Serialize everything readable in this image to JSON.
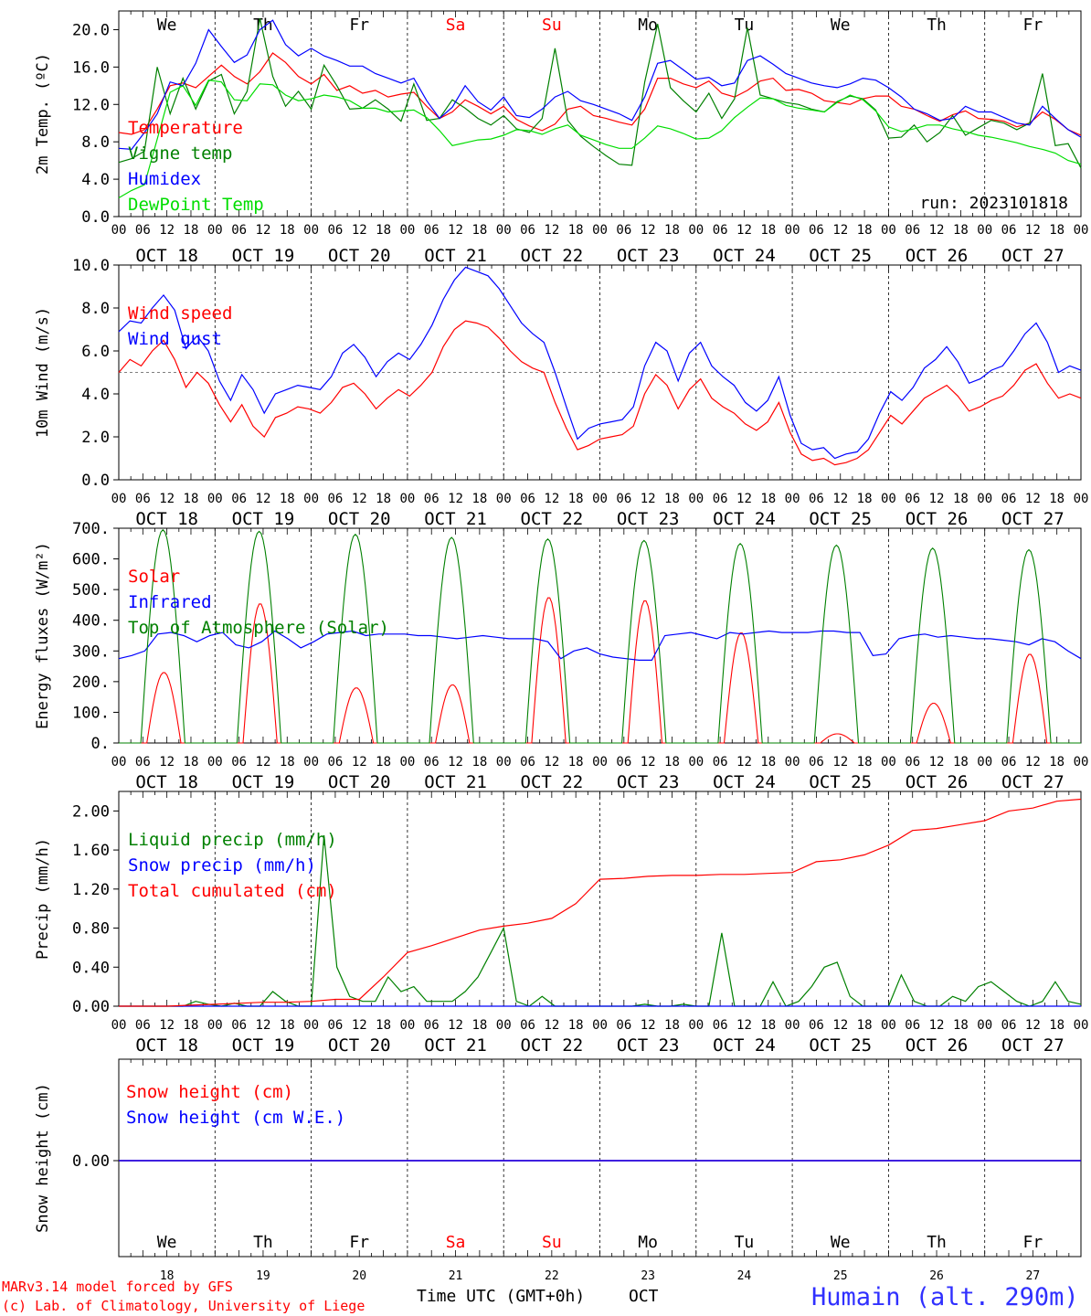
{
  "days": [
    "We",
    "Th",
    "Fr",
    "Sa",
    "Su",
    "Mo",
    "Tu",
    "We",
    "Th",
    "Fr"
  ],
  "day_colors": [
    "#000000",
    "#000000",
    "#000000",
    "#ff0000",
    "#ff0000",
    "#000000",
    "#000000",
    "#000000",
    "#000000",
    "#000000"
  ],
  "dates": [
    "OCT 18",
    "OCT 19",
    "OCT 20",
    "OCT 21",
    "OCT 22",
    "OCT 23",
    "OCT 24",
    "OCT 25",
    "OCT 26",
    "OCT 27"
  ],
  "hour_ticks": [
    "00",
    "06",
    "12",
    "18"
  ],
  "bottom_day_numbers": [
    "18",
    "19",
    "20",
    "21",
    "22",
    "23",
    "24",
    "25",
    "26",
    "27"
  ],
  "footer": {
    "model": "MARv3.14 model forced by GFS",
    "credit": "(c) Lab. of Climatology, University of Liege",
    "xlabel": "Time UTC (GMT+0h)",
    "month": "OCT",
    "station": "Humain (alt. 290m)"
  },
  "colors": {
    "red": "#ff0000",
    "blue": "#0000ff",
    "green": "#008000",
    "lightgreen": "#00dd00",
    "purple": "#800080"
  },
  "chart_data": [
    {
      "type": "line",
      "ylabel": "2m Temp. (ºC)",
      "ylim": [
        0,
        22
      ],
      "yticks": [
        "0.0",
        "4.0",
        "8.0",
        "12.0",
        "16.0",
        "20.0"
      ],
      "annotation": "run: 2023101818",
      "series": [
        {
          "name": "Temperature",
          "color": "#ff0000",
          "values": [
            9,
            8.8,
            9.3,
            11.5,
            14,
            14.3,
            13.8,
            15,
            16.2,
            15,
            14.2,
            15.5,
            17.5,
            16.5,
            15,
            14.2,
            15.2,
            13.5,
            14,
            13.2,
            13.5,
            12.8,
            13.1,
            13.3,
            11.8,
            10.5,
            11.2,
            12.5,
            11.8,
            11,
            11.8,
            10.4,
            9.7,
            9.2,
            9.9,
            11.5,
            11.8,
            10.8,
            10.5,
            10.1,
            9.8,
            11.5,
            14.8,
            14.8,
            14.2,
            13.8,
            14.5,
            13.2,
            12.8,
            13.5,
            14.5,
            14.8,
            13.5,
            13.6,
            13.2,
            12.4,
            12.2,
            12,
            12.6,
            12.9,
            12.9,
            11.8,
            11.5,
            10.8,
            10.2,
            10.9,
            11.3,
            10.5,
            10.4,
            10.2,
            9.6,
            10,
            11.2,
            10.4,
            9.3,
            8.7
          ]
        },
        {
          "name": "Vigne temp",
          "color": "#008000",
          "values": [
            5.8,
            6.2,
            7,
            16,
            11,
            14.8,
            11.5,
            14.5,
            15.2,
            11,
            13.4,
            21.2,
            15,
            11.8,
            13.4,
            11.5,
            16.2,
            14,
            11.5,
            11.6,
            12.5,
            11.5,
            10.2,
            14.2,
            10.3,
            10.5,
            12.5,
            11.6,
            10.5,
            9.8,
            10.8,
            9.4,
            9,
            10.5,
            18,
            10.3,
            8.6,
            7.5,
            6.5,
            5.6,
            5.5,
            14.4,
            20.6,
            13.8,
            12.4,
            11.2,
            13.2,
            10.5,
            12.6,
            20.2,
            13,
            12.6,
            12.2,
            12,
            11.5,
            11.2,
            12.3,
            12.9,
            12.6,
            11.4,
            8.4,
            8.5,
            9.8,
            8,
            9,
            10.8,
            8.7,
            9.5,
            10.3,
            10,
            9.3,
            10,
            15.3,
            7.6,
            7.8,
            5.2
          ]
        },
        {
          "name": "Humidex",
          "color": "#0000ff",
          "values": [
            7.3,
            7.2,
            9,
            11,
            14.4,
            14,
            16.4,
            20,
            18.2,
            16.5,
            17.3,
            20,
            21,
            18.4,
            17.2,
            18,
            17.2,
            16.7,
            16.1,
            16.1,
            15.3,
            14.8,
            14.3,
            14.8,
            12.4,
            10.5,
            11.7,
            14,
            12.3,
            11.4,
            12.8,
            10.8,
            10.6,
            11.5,
            12.8,
            13.4,
            12.4,
            12,
            11.5,
            11,
            10.3,
            12.8,
            16.4,
            16.7,
            15.7,
            14.7,
            14.9,
            14,
            14.3,
            16.7,
            17.2,
            16.3,
            15.3,
            14.8,
            14.3,
            14,
            13.8,
            14.2,
            14.8,
            14.6,
            13.8,
            12.8,
            11.5,
            11,
            10.3,
            10.5,
            11.8,
            11.2,
            11.2,
            10.6,
            10,
            9.8,
            11.8,
            10.5,
            9.3,
            8.5
          ]
        },
        {
          "name": "DewPoint Temp",
          "color": "#00dd00",
          "values": [
            2,
            2.8,
            3.4,
            8.3,
            13.3,
            14,
            11.9,
            14.6,
            14.4,
            12.5,
            12.4,
            14.2,
            14.1,
            13,
            12.4,
            12.6,
            13,
            12.8,
            12.4,
            11.6,
            11.6,
            11.2,
            11.3,
            11.4,
            10.6,
            9.2,
            7.6,
            7.9,
            8.2,
            8.3,
            8.7,
            9.3,
            9.2,
            8.8,
            9.4,
            9.8,
            8.7,
            8.2,
            7.7,
            7.3,
            7.3,
            8.4,
            9.7,
            9.4,
            8.9,
            8.3,
            8.4,
            9.2,
            10.6,
            11.7,
            12.7,
            12.6,
            11.9,
            11.6,
            11.4,
            11.2,
            12.2,
            13,
            12.5,
            11.3,
            9.6,
            9.1,
            9.4,
            9.8,
            9.8,
            9.4,
            9.1,
            8.7,
            8.5,
            8.2,
            7.9,
            7.5,
            7.2,
            6.8,
            6,
            5.6
          ]
        }
      ]
    },
    {
      "type": "line",
      "ylabel": "10m Wind (m/s)",
      "ylim": [
        0,
        10
      ],
      "yticks": [
        "0.0",
        "2.0",
        "4.0",
        "6.0",
        "8.0",
        "10.0"
      ],
      "reference_line": 5,
      "series": [
        {
          "name": "Wind speed",
          "color": "#ff0000",
          "values": [
            5,
            5.6,
            5.3,
            6,
            6.5,
            5.6,
            4.3,
            5,
            4.5,
            3.5,
            2.7,
            3.5,
            2.5,
            2,
            2.9,
            3.1,
            3.4,
            3.3,
            3.1,
            3.6,
            4.3,
            4.5,
            4,
            3.3,
            3.8,
            4.2,
            3.9,
            4.4,
            5,
            6.2,
            7,
            7.4,
            7.3,
            7.1,
            6.6,
            6,
            5.5,
            5.2,
            5,
            3.6,
            2.4,
            1.4,
            1.6,
            1.9,
            2,
            2.1,
            2.5,
            4,
            4.9,
            4.4,
            3.3,
            4.2,
            4.7,
            3.8,
            3.4,
            3.1,
            2.6,
            2.3,
            2.7,
            3.6,
            2.2,
            1.2,
            0.9,
            1,
            0.7,
            0.8,
            1,
            1.4,
            2.2,
            3,
            2.6,
            3.2,
            3.8,
            4.1,
            4.4,
            3.9,
            3.2,
            3.4,
            3.7,
            3.9,
            4.4,
            5.1,
            5.4,
            4.5,
            3.8,
            4,
            3.8
          ]
        },
        {
          "name": "Wind gust",
          "color": "#0000ff",
          "values": [
            6.9,
            7.4,
            7.3,
            8,
            8.6,
            7.9,
            6.1,
            6.7,
            6,
            4.6,
            3.7,
            4.9,
            4.2,
            3.1,
            4,
            4.2,
            4.4,
            4.3,
            4.2,
            4.8,
            5.9,
            6.3,
            5.7,
            4.8,
            5.5,
            5.9,
            5.6,
            6.3,
            7.2,
            8.4,
            9.3,
            9.9,
            9.7,
            9.5,
            8.9,
            8.1,
            7.3,
            6.8,
            6.4,
            5,
            3.4,
            1.9,
            2.4,
            2.6,
            2.7,
            2.8,
            3.4,
            5.3,
            6.4,
            6,
            4.6,
            5.9,
            6.4,
            5.3,
            4.8,
            4.4,
            3.6,
            3.2,
            3.7,
            4.8,
            3,
            1.7,
            1.4,
            1.5,
            1,
            1.2,
            1.3,
            1.9,
            3.1,
            4.1,
            3.7,
            4.3,
            5.2,
            5.6,
            6.2,
            5.5,
            4.5,
            4.7,
            5.1,
            5.3,
            6,
            6.8,
            7.3,
            6.4,
            5,
            5.3,
            5.1
          ]
        }
      ]
    },
    {
      "type": "line",
      "ylabel": "Energy fluxes (W/m²)",
      "ylim": [
        0,
        700
      ],
      "yticks": [
        "0.",
        "100.",
        "200.",
        "300.",
        "400.",
        "500.",
        "600.",
        "700."
      ],
      "series": [
        {
          "name": "Solar",
          "color": "#ff0000",
          "days_peak": [
            230,
            455,
            180,
            190,
            475,
            465,
            360,
            30,
            130,
            290
          ]
        },
        {
          "name": "Infrared",
          "color": "#0000ff",
          "values": [
            275,
            285,
            300,
            355,
            360,
            350,
            330,
            350,
            360,
            320,
            310,
            330,
            365,
            340,
            310,
            330,
            355,
            360,
            365,
            350,
            355,
            355,
            355,
            350,
            350,
            345,
            340,
            345,
            350,
            345,
            340,
            340,
            340,
            330,
            275,
            300,
            310,
            290,
            280,
            275,
            270,
            270,
            350,
            355,
            360,
            350,
            340,
            360,
            355,
            360,
            365,
            360,
            360,
            360,
            365,
            365,
            360,
            360,
            285,
            290,
            340,
            350,
            355,
            345,
            350,
            345,
            340,
            340,
            335,
            330,
            320,
            340,
            330,
            300,
            275
          ]
        },
        {
          "name": "Top of Atmosphere (Solar)",
          "color": "#008000",
          "days_peak": [
            695,
            690,
            680,
            670,
            665,
            660,
            650,
            645,
            635,
            630
          ]
        }
      ]
    },
    {
      "type": "line",
      "ylabel": "Precip (mm/h)",
      "ylim": [
        0,
        2.2
      ],
      "yticks": [
        "0.00",
        "0.40",
        "0.80",
        "1.20",
        "1.60",
        "2.00"
      ],
      "series": [
        {
          "name": "Liquid precip (mm/h)",
          "color": "#008000",
          "values": [
            0,
            0,
            0,
            0,
            0,
            0,
            0.05,
            0.02,
            0,
            0.03,
            0,
            0,
            0.15,
            0.05,
            0,
            0,
            1.75,
            0.4,
            0.1,
            0.05,
            0.05,
            0.3,
            0.15,
            0.2,
            0.05,
            0.05,
            0.05,
            0.15,
            0.3,
            0.55,
            0.8,
            0.05,
            0,
            0.1,
            0,
            0,
            0,
            0,
            0,
            0,
            0,
            0.02,
            0,
            0,
            0.02,
            0,
            0,
            0.75,
            0,
            0,
            0,
            0.25,
            0,
            0.05,
            0.2,
            0.4,
            0.45,
            0.1,
            0,
            0,
            0,
            0.32,
            0.05,
            0,
            0,
            0.1,
            0.05,
            0.2,
            0.25,
            0.15,
            0.05,
            0,
            0.05,
            0.25,
            0.05,
            0.02
          ]
        },
        {
          "name": "Snow precip (mm/h)",
          "color": "#0000ff",
          "values": [
            0,
            0
          ]
        },
        {
          "name": "Total cumulated (cm)",
          "color": "#ff0000",
          "values": [
            0,
            0,
            0,
            0.01,
            0.02,
            0.03,
            0.04,
            0.04,
            0.05,
            0.07,
            0.07,
            0.3,
            0.55,
            0.62,
            0.7,
            0.78,
            0.82,
            0.85,
            0.9,
            1.05,
            1.3,
            1.31,
            1.33,
            1.34,
            1.34,
            1.35,
            1.35,
            1.36,
            1.37,
            1.48,
            1.5,
            1.55,
            1.65,
            1.8,
            1.82,
            1.86,
            1.9,
            2.0,
            2.03,
            2.1,
            2.12
          ]
        }
      ]
    },
    {
      "type": "line",
      "ylabel": "Snow height (cm)",
      "yticks": [
        "0.00"
      ],
      "series": [
        {
          "name": "Snow height (cm)",
          "color": "#ff0000",
          "values": [
            0,
            0
          ]
        },
        {
          "name": "Snow height (cm W.E.)",
          "color": "#0000ff",
          "values": [
            0,
            0
          ]
        }
      ]
    }
  ]
}
